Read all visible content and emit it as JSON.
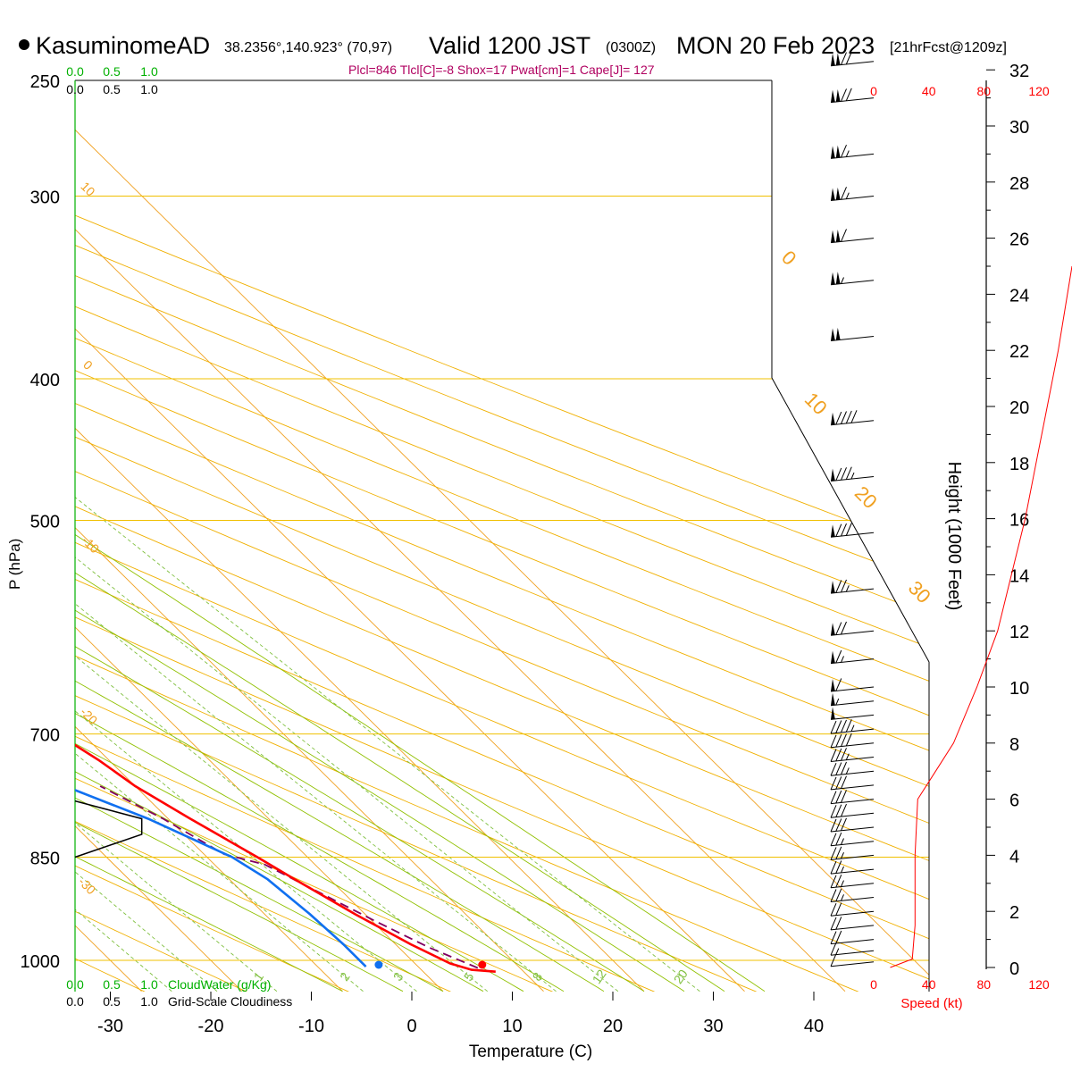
{
  "header": {
    "station": "KasuminomeAD",
    "coords": "38.2356°,140.923° (70,97)",
    "valid": "Valid 1200 JST",
    "zulu": "(0300Z)",
    "date": "MON 20 Feb 2023",
    "fcst": "[21hrFcst@1209z]",
    "indices": "Plcl=846 Tlcl[C]=-8 Shox=17 Pwat[cm]=1 Cape[J]= 127"
  },
  "colors": {
    "isobar": "#f0c000",
    "isotherm": "#f0a020",
    "dry_adiabat": "#f0b000",
    "moist_adiabat": "#90c000",
    "mixing_ratio": "#80c040",
    "temperature": "#ff0000",
    "dewpoint": "#1070f0",
    "parcel": "#800060",
    "cloud_green": "#00b000",
    "indices": "#b00060",
    "speed": "#ff0000"
  },
  "chart_data": {
    "type": "line",
    "chart_kind": "skew-T log-p sounding",
    "xlabel": "Temperature (C)",
    "ylabel": "P (hPa)",
    "xlim": [
      -35,
      36
    ],
    "ylim_hpa": [
      1050,
      250
    ],
    "x_ticks": [
      -30,
      -20,
      -10,
      0,
      10,
      20,
      30,
      40
    ],
    "pressure_levels": [
      250,
      300,
      400,
      500,
      700,
      850,
      1000
    ],
    "isotherm_labels": [
      "10",
      "0",
      "-10",
      "-20",
      "-30",
      "0",
      "10",
      "20",
      "30"
    ],
    "mixing_ratio_labels": [
      "1",
      "2",
      "3",
      "5",
      "8",
      "12",
      "20"
    ],
    "series": [
      {
        "name": "Temperature",
        "points": [
          {
            "p": 1018,
            "t": 7.2
          },
          {
            "p": 1015,
            "t": 5.0
          },
          {
            "p": 1005,
            "t": 3.5
          },
          {
            "p": 975,
            "t": 1.5
          },
          {
            "p": 930,
            "t": -1.0
          },
          {
            "p": 880,
            "t": -3.5
          },
          {
            "p": 850,
            "t": -5.0
          },
          {
            "p": 800,
            "t": -7.8
          },
          {
            "p": 760,
            "t": -10.0
          },
          {
            "p": 730,
            "t": -11.0
          },
          {
            "p": 700,
            "t": -12.5
          },
          {
            "p": 650,
            "t": -15.5
          },
          {
            "p": 600,
            "t": -19.8
          },
          {
            "p": 550,
            "t": -24.7
          },
          {
            "p": 500,
            "t": -29.6
          },
          {
            "p": 450,
            "t": -35.0
          },
          {
            "p": 400,
            "t": -41.0
          },
          {
            "p": 350,
            "t": -47.5
          },
          {
            "p": 320,
            "t": -51.5
          },
          {
            "p": 300,
            "t": -53.5
          },
          {
            "p": 265,
            "t": -58.5
          }
        ]
      },
      {
        "name": "Dewpoint",
        "points": [
          {
            "p": 1010,
            "t": -5.2
          },
          {
            "p": 975,
            "t": -5.2
          },
          {
            "p": 930,
            "t": -5.5
          },
          {
            "p": 880,
            "t": -6.2
          },
          {
            "p": 850,
            "t": -7.5
          },
          {
            "p": 800,
            "t": -12.0
          },
          {
            "p": 760,
            "t": -17.0
          },
          {
            "p": 730,
            "t": -19.0
          },
          {
            "p": 700,
            "t": -21.0
          },
          {
            "p": 660,
            "t": -24.5
          },
          {
            "p": 600,
            "t": -34.0
          },
          {
            "p": 550,
            "t": -44.0
          },
          {
            "p": 500,
            "t": -50.0
          },
          {
            "p": 450,
            "t": -56.0
          },
          {
            "p": 420,
            "t": -60.0
          },
          {
            "p": 400,
            "t": -61.0
          },
          {
            "p": 370,
            "t": -61.0
          },
          {
            "p": 340,
            "t": -62.5
          },
          {
            "p": 300,
            "t": -65.5
          },
          {
            "p": 265,
            "t": -68.0
          }
        ]
      },
      {
        "name": "Parcel",
        "points": [
          {
            "p": 1012,
            "t": 5.8
          },
          {
            "p": 980,
            "t": 3.0
          },
          {
            "p": 940,
            "t": 0.3
          },
          {
            "p": 900,
            "t": -2.3
          },
          {
            "p": 860,
            "t": -5.0
          },
          {
            "p": 846,
            "t": -8.0
          },
          {
            "p": 800,
            "t": -10.5
          },
          {
            "p": 760,
            "t": -13.5
          }
        ]
      }
    ],
    "surface_temperature": 7.0,
    "surface_dewpoint": -3.3,
    "lcl_hpa": 846,
    "height_axis": {
      "label": "Height (1000 Feet)",
      "ticks": [
        0,
        2,
        4,
        6,
        8,
        10,
        12,
        14,
        16,
        18,
        20,
        22,
        24,
        26,
        28,
        30,
        32
      ]
    },
    "wind_speed": {
      "label": "Speed (kt)",
      "ticks": [
        0,
        40,
        80,
        120
      ],
      "profile": [
        {
          "kft": 0,
          "kt": 12
        },
        {
          "kft": 0.3,
          "kt": 28
        },
        {
          "kft": 1.5,
          "kt": 30
        },
        {
          "kft": 4,
          "kt": 30
        },
        {
          "kft": 6,
          "kt": 32
        },
        {
          "kft": 7,
          "kt": 45
        },
        {
          "kft": 8,
          "kt": 58
        },
        {
          "kft": 10,
          "kt": 75
        },
        {
          "kft": 12,
          "kt": 90
        },
        {
          "kft": 14,
          "kt": 100
        },
        {
          "kft": 16,
          "kt": 110
        },
        {
          "kft": 18,
          "kt": 118
        },
        {
          "kft": 20,
          "kt": 126
        },
        {
          "kft": 22,
          "kt": 134
        },
        {
          "kft": 25,
          "kt": 145
        }
      ]
    },
    "wind_barbs": [
      {
        "kft": 0.2,
        "kt": 12
      },
      {
        "kft": 0.6,
        "kt": 15
      },
      {
        "kft": 1.0,
        "kt": 18
      },
      {
        "kft": 1.5,
        "kt": 20
      },
      {
        "kft": 2.0,
        "kt": 22
      },
      {
        "kft": 2.5,
        "kt": 24
      },
      {
        "kft": 3.0,
        "kt": 25
      },
      {
        "kft": 3.5,
        "kt": 25
      },
      {
        "kft": 4.0,
        "kt": 26
      },
      {
        "kft": 4.5,
        "kt": 27
      },
      {
        "kft": 5.0,
        "kt": 28
      },
      {
        "kft": 5.5,
        "kt": 29
      },
      {
        "kft": 6.0,
        "kt": 30
      },
      {
        "kft": 6.5,
        "kt": 31
      },
      {
        "kft": 7.0,
        "kt": 33
      },
      {
        "kft": 7.5,
        "kt": 36
      },
      {
        "kft": 8.0,
        "kt": 40
      },
      {
        "kft": 8.5,
        "kt": 45
      },
      {
        "kft": 9.0,
        "kt": 50
      },
      {
        "kft": 9.5,
        "kt": 55
      },
      {
        "kft": 10.0,
        "kt": 60
      },
      {
        "kft": 11.0,
        "kt": 65
      },
      {
        "kft": 12.0,
        "kt": 70
      },
      {
        "kft": 13.5,
        "kt": 75
      },
      {
        "kft": 15.5,
        "kt": 80
      },
      {
        "kft": 17.5,
        "kt": 85
      },
      {
        "kft": 19.5,
        "kt": 90
      },
      {
        "kft": 22.5,
        "kt": 100
      },
      {
        "kft": 24.5,
        "kt": 105
      },
      {
        "kft": 26.0,
        "kt": 110
      },
      {
        "kft": 27.5,
        "kt": 115
      },
      {
        "kft": 29.0,
        "kt": 115
      },
      {
        "kft": 31.0,
        "kt": 120
      },
      {
        "kft": 32.3,
        "kt": 120
      }
    ],
    "cloud_water": {
      "label": "CloudWater (g/Kg)",
      "ticks": [
        "0.0",
        "0.5",
        "1.0"
      ]
    },
    "cloudiness": {
      "label": "Grid-Scale Cloudiness",
      "ticks": [
        "0.0",
        "0.5",
        "1.0"
      ],
      "profile": [
        {
          "p": 850,
          "fraction": 0.0
        },
        {
          "p": 820,
          "fraction": 0.45
        },
        {
          "p": 800,
          "fraction": 0.45
        },
        {
          "p": 778,
          "fraction": 0.0
        }
      ]
    }
  }
}
